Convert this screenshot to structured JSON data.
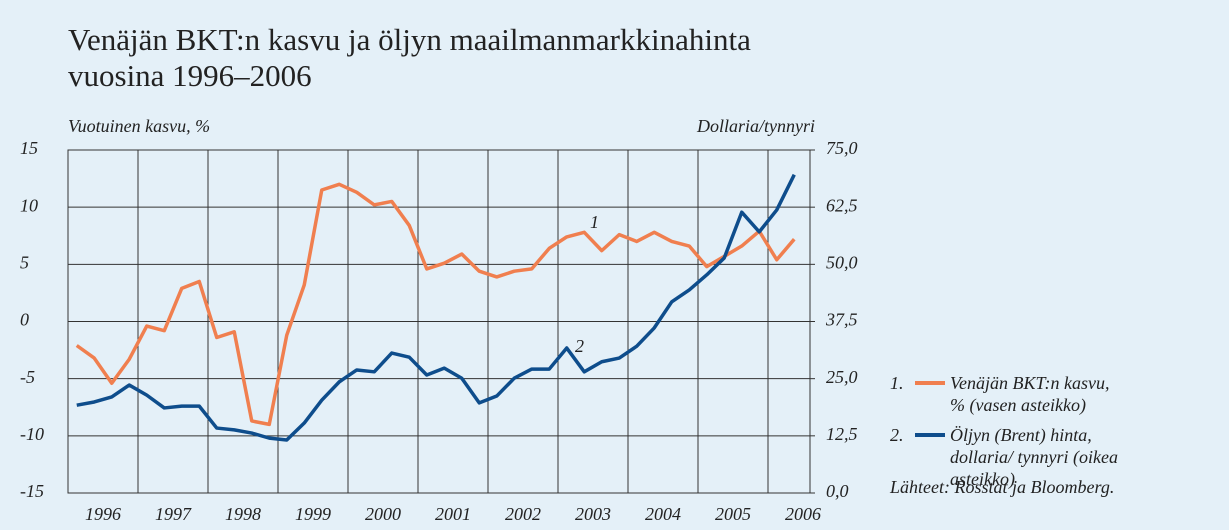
{
  "chart_data": {
    "type": "line",
    "title": "Venäjän BKT:n kasvu ja öljyn maailmanmarkkinahinta vuosina 1996–2006",
    "ylabel": "Vuotuinen kasvu, %",
    "y2label": "Dollaria/tynnyri",
    "source": "Lähteet: Rosstat ja Bloomberg.",
    "annotations": [
      "1",
      "2"
    ],
    "x": [
      1996.125,
      1996.375,
      1996.625,
      1996.875,
      1997.125,
      1997.375,
      1997.625,
      1997.875,
      1998.125,
      1998.375,
      1998.625,
      1998.875,
      1999.125,
      1999.375,
      1999.625,
      1999.875,
      2000.125,
      2000.375,
      2000.625,
      2000.875,
      2001.125,
      2001.375,
      2001.625,
      2001.875,
      2002.125,
      2002.375,
      2002.625,
      2002.875,
      2003.125,
      2003.375,
      2003.625,
      2003.875,
      2004.125,
      2004.375,
      2004.625,
      2004.875,
      2005.125,
      2005.375,
      2005.625,
      2005.875,
      2006.125,
      2006.375
    ],
    "xlim": [
      1996,
      2006.6
    ],
    "xticks": [
      {
        "value": 1996.5,
        "label": "1996"
      },
      {
        "value": 1997.5,
        "label": "1997"
      },
      {
        "value": 1998.5,
        "label": "1998"
      },
      {
        "value": 1999.5,
        "label": "1999"
      },
      {
        "value": 2000.5,
        "label": "2000"
      },
      {
        "value": 2001.5,
        "label": "2001"
      },
      {
        "value": 2002.5,
        "label": "2002"
      },
      {
        "value": 2003.5,
        "label": "2003"
      },
      {
        "value": 2004.5,
        "label": "2004"
      },
      {
        "value": 2005.5,
        "label": "2005"
      },
      {
        "value": 2006.5,
        "label": "2006"
      }
    ],
    "ylim": [
      -15,
      15
    ],
    "yticks": [
      -15,
      -10,
      -5,
      0,
      5,
      10,
      15
    ],
    "y2lim": [
      0,
      75
    ],
    "y2ticks": [
      {
        "value": 0,
        "label": "0,0"
      },
      {
        "value": 12.5,
        "label": "12,5"
      },
      {
        "value": 25,
        "label": "25,0"
      },
      {
        "value": 37.5,
        "label": "37,5"
      },
      {
        "value": 50,
        "label": "50,0"
      },
      {
        "value": 62.5,
        "label": "62,5"
      },
      {
        "value": 75,
        "label": "75,0"
      }
    ],
    "grid": true,
    "series": [
      {
        "number": "1.",
        "name": "Venäjän BKT:n kasvu, % (vasen asteikko)",
        "color": "#f07f4f",
        "values": [
          -2.1,
          -3.2,
          -5.4,
          -3.3,
          -0.4,
          -0.8,
          2.9,
          3.5,
          -1.4,
          -0.9,
          -8.7,
          -9.0,
          -1.2,
          3.2,
          11.5,
          12.0,
          11.3,
          10.2,
          10.5,
          8.4,
          4.6,
          5.1,
          5.9,
          4.4,
          3.9,
          4.4,
          4.6,
          6.4,
          7.4,
          7.8,
          6.2,
          7.6,
          7.0,
          7.8,
          7.0,
          6.6,
          4.8,
          5.7,
          6.6,
          7.9,
          5.4,
          7.2
        ]
      },
      {
        "number": "2.",
        "name": "Öljyn (Brent) hinta, dollaria/ tynnyri (oikea asteikko)",
        "color": "#0e4d8c",
        "axis": "y2",
        "values": [
          19.2,
          19.9,
          21.0,
          23.6,
          21.4,
          18.6,
          19.0,
          19.0,
          14.2,
          13.8,
          13.1,
          12.0,
          11.6,
          15.3,
          20.3,
          24.3,
          26.9,
          26.5,
          30.6,
          29.7,
          25.8,
          27.3,
          25.1,
          19.7,
          21.2,
          25.1,
          27.1,
          27.1,
          31.7,
          26.5,
          28.7,
          29.5,
          32.1,
          36.1,
          41.8,
          44.4,
          47.7,
          51.4,
          61.4,
          57.1,
          61.9,
          69.6
        ]
      }
    ]
  }
}
